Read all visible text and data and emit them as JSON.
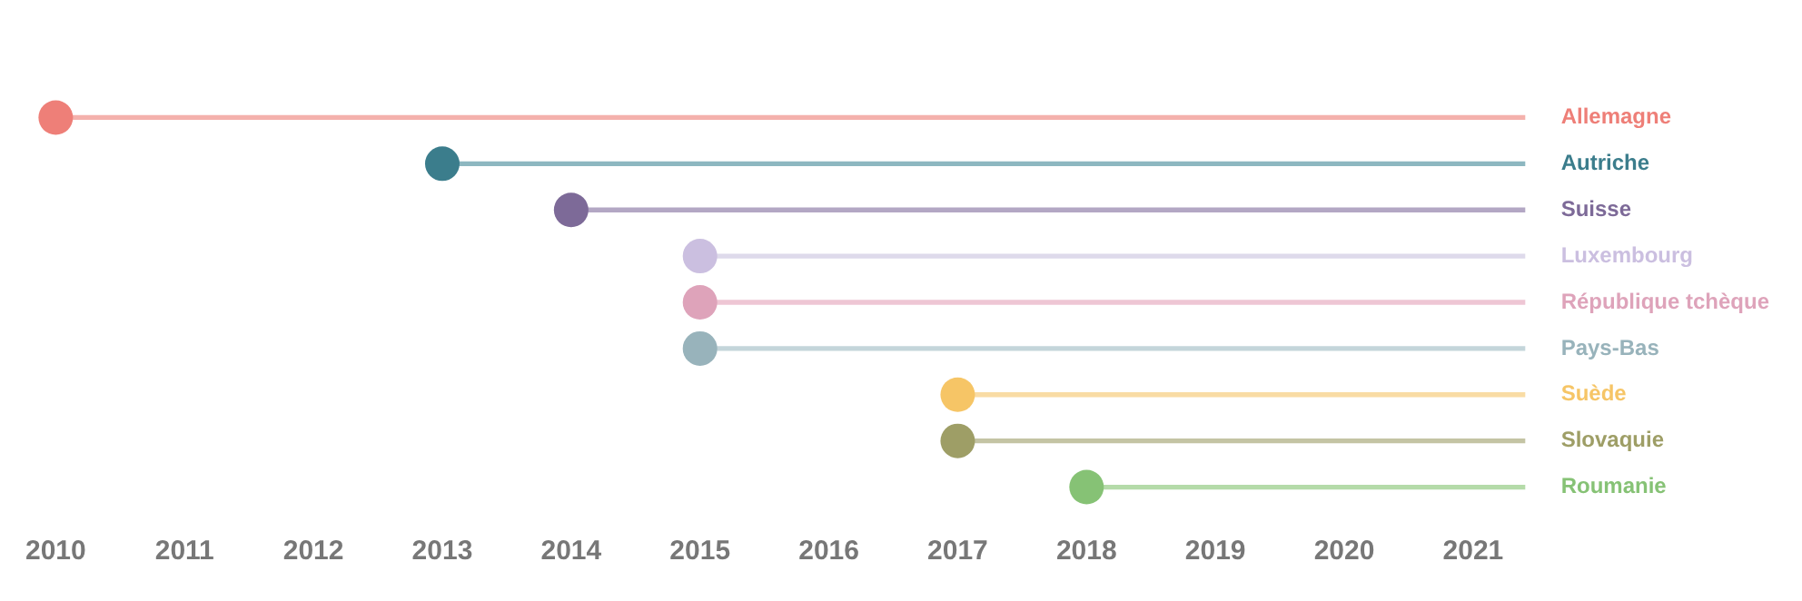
{
  "chart_data": {
    "type": "bar",
    "orientation": "horizontal",
    "categories": [
      "Allemagne",
      "Autriche",
      "Suisse",
      "Luxembourg",
      "République tchèque",
      "Pays-Bas",
      "Suède",
      "Slovaquie",
      "Roumanie"
    ],
    "series": [
      {
        "base": [
          2010,
          2013,
          2014,
          2015,
          2015,
          2015,
          2017,
          2017,
          2018
        ],
        "values": [
          11.4,
          8.4,
          7.4,
          6.4,
          6.4,
          6.4,
          4.4,
          4.4,
          3.4
        ],
        "colors": [
          "#f4b1ac",
          "#8db7c0",
          "#b3a7c4",
          "#dedaeb",
          "#eec6d4",
          "#c4d5da",
          "#f9dca4",
          "#c4c4a4",
          "#b5dba9"
        ]
      },
      {
        "type": "scatter",
        "values": [
          2010,
          2013,
          2014,
          2015,
          2015,
          2015,
          2017,
          2017,
          2018
        ],
        "colors": [
          "#ee7f78",
          "#3b7d8c",
          "#7d6a98",
          "#cbbfe0",
          "#dea3ba",
          "#98b3bb",
          "#f6c566",
          "#9e9e66",
          "#86c275"
        ]
      }
    ],
    "marker": "circle",
    "xlim": [
      2010,
      2021.4
    ],
    "xticks": [
      2010,
      2011,
      2012,
      2013,
      2014,
      2015,
      2016,
      2017,
      2018,
      2019,
      2020,
      2021
    ],
    "grid": false,
    "legend": false
  }
}
